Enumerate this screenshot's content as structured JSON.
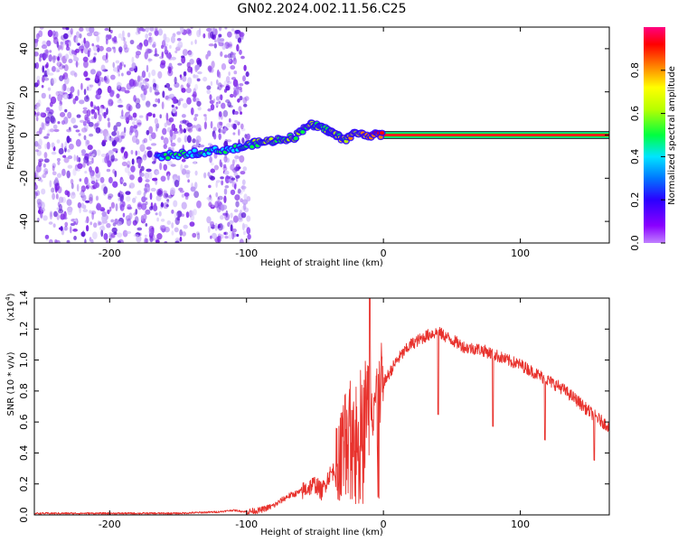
{
  "title": "GN02.2024.002.11.56.C25",
  "colors": {
    "snr_line": "#e8322d",
    "spectro_purple": "#7a1ee6",
    "colorbar_stops": [
      "#a000e0",
      "#3c00ff",
      "#0070ff",
      "#00e0ff",
      "#00ff40",
      "#b8ff00",
      "#ffff00",
      "#ff8000",
      "#ff0000",
      "#ff0080"
    ]
  },
  "chart_data": [
    {
      "type": "heatmap",
      "xlabel": "Height of straight line (km)",
      "ylabel": "Frequency (Hz)",
      "xlim": [
        -255,
        165
      ],
      "ylim": [
        -50,
        50
      ],
      "xticks": [
        -200,
        -100,
        0,
        100
      ],
      "yticks": [
        -40,
        -20,
        0,
        20,
        40
      ],
      "xtick_labels": [
        "-200",
        "-100",
        "0",
        "100"
      ],
      "ytick_labels": [
        "-40",
        "-20",
        "0",
        "20",
        "40"
      ],
      "grid": false,
      "colorbar": {
        "label": "Normalized spectral amplitude",
        "range": [
          0,
          1
        ],
        "ticks": [
          0.0,
          0.2,
          0.4,
          0.6,
          0.8
        ],
        "tick_labels": [
          "0.0",
          "0.2",
          "0.4",
          "0.6",
          "0.8"
        ]
      },
      "noise_region_x": [
        -255,
        -100
      ],
      "noise_gap_x": [
        -134,
        -128
      ],
      "signal_track": {
        "x": [
          -165,
          -150,
          -135,
          -120,
          -105,
          -95,
          -85,
          -75,
          -65,
          -55,
          -48,
          -40,
          -35,
          -28,
          -20,
          -10,
          0,
          160
        ],
        "y": [
          -10,
          -9,
          -8,
          -7,
          -6,
          -4,
          -3,
          -2,
          -1,
          5,
          4,
          2,
          0,
          -2,
          1,
          0,
          0,
          0
        ],
        "amplitude": [
          0.3,
          0.35,
          0.35,
          0.4,
          0.4,
          0.45,
          0.5,
          0.5,
          0.5,
          0.55,
          0.5,
          0.5,
          0.6,
          0.55,
          0.7,
          0.8,
          0.85,
          0.9
        ]
      }
    },
    {
      "type": "line",
      "xlabel": "Height of straight line (km)",
      "ylabel": "SNR (10 * v/v)",
      "yscale_label": "(x10",
      "yscale_exp": "4",
      "yscale_close": ")",
      "xlim": [
        -255,
        165
      ],
      "ylim": [
        0,
        1.4
      ],
      "xticks": [
        -200,
        -100,
        0,
        100
      ],
      "yticks": [
        0.0,
        0.2,
        0.4,
        0.6,
        0.8,
        1.0,
        1.2,
        1.4
      ],
      "xtick_labels": [
        "-200",
        "-100",
        "0",
        "100"
      ],
      "ytick_labels": [
        "0.0",
        "0.2",
        "0.4",
        "0.6",
        "0.8",
        "1.0",
        "1.2",
        "1.4"
      ],
      "grid": false,
      "series": [
        {
          "x": [
            -255,
            -200,
            -150,
            -120,
            -110,
            -100,
            -90,
            -80,
            -70,
            -60,
            -50,
            -45,
            -40,
            -35,
            -30,
            -25,
            -20,
            -15,
            -10,
            -5,
            0,
            10,
            20,
            30,
            35,
            40,
            50,
            60,
            70,
            80,
            90,
            100,
            110,
            120,
            130,
            140,
            150,
            160,
            165
          ],
          "values": [
            0.01,
            0.01,
            0.01,
            0.02,
            0.03,
            0.02,
            0.03,
            0.06,
            0.12,
            0.15,
            0.2,
            0.15,
            0.25,
            0.3,
            0.45,
            0.55,
            0.65,
            0.7,
            0.8,
            0.75,
            0.85,
            1.0,
            1.1,
            1.15,
            1.17,
            1.18,
            1.13,
            1.08,
            1.07,
            1.04,
            1.0,
            0.97,
            0.92,
            0.87,
            0.82,
            0.75,
            0.67,
            0.6,
            0.57
          ]
        }
      ]
    }
  ]
}
